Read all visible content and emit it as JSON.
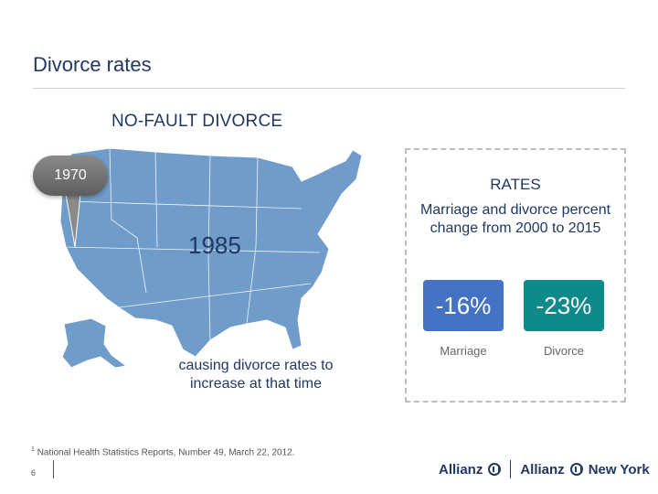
{
  "slide": {
    "title": "Divorce rates",
    "subtitle": "NO-FAULT DIVORCE"
  },
  "map": {
    "badge_year": "1970",
    "year_label": "1985",
    "caption": "causing divorce rates to increase at that time",
    "map_color": "#6f9cc8",
    "badge_color": "#6e6e6e"
  },
  "rates": {
    "title": "RATES",
    "description": "Marriage and divorce percent change from 2000 to 2015",
    "marriage_value": "-16%",
    "marriage_label": "Marriage",
    "divorce_value": "-23%",
    "divorce_label": "Divorce",
    "marriage_color": "#4472c4",
    "divorce_color": "#0f8a8a"
  },
  "footer": {
    "footnote_mark": "1",
    "footnote": "National Health Statistics Reports, Number 49, March 22, 2012.",
    "page_number": "6",
    "logo_left": "Allianz",
    "logo_right": "Allianz",
    "logo_right_suffix": "New York"
  }
}
